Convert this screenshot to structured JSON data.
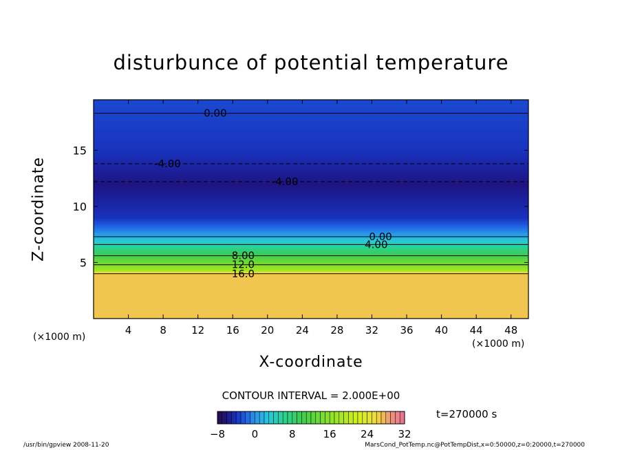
{
  "chart_data": {
    "type": "heatmap",
    "title": "disturbunce of potential temperature",
    "xlabel": "X-coordinate",
    "ylabel": "Z-coordinate",
    "x_unit": "(×1000 m)",
    "y_unit": "(×1000 m)",
    "xlim": [
      0,
      50
    ],
    "ylim": [
      0,
      19.5
    ],
    "x_ticks": [
      4,
      8,
      12,
      16,
      20,
      24,
      28,
      32,
      36,
      40,
      44,
      48
    ],
    "y_ticks": [
      5,
      10,
      15
    ],
    "contour_interval_text": "CONTOUR INTERVAL = 2.000E+00",
    "contour_labels": [
      {
        "text": "0.00",
        "x": 14,
        "z": 18.3
      },
      {
        "text": "-4.00",
        "x": 8.5,
        "z": 13.8
      },
      {
        "text": "-4.00",
        "x": 22,
        "z": 12.2
      },
      {
        "text": "0.00",
        "x": 33,
        "z": 7.3
      },
      {
        "text": "4.00",
        "x": 32.5,
        "z": 6.6
      },
      {
        "text": "8.00",
        "x": 17.2,
        "z": 5.6
      },
      {
        "text": "12.0",
        "x": 17.2,
        "z": 4.8
      },
      {
        "text": "16.0",
        "x": 17.2,
        "z": 4.0
      }
    ],
    "field_profile": [
      {
        "z": 0.0,
        "value": 27
      },
      {
        "z": 4.1,
        "value": 27
      },
      {
        "z": 4.3,
        "value": 18
      },
      {
        "z": 5.0,
        "value": 14
      },
      {
        "z": 5.7,
        "value": 10
      },
      {
        "z": 6.4,
        "value": 6
      },
      {
        "z": 7.0,
        "value": 3
      },
      {
        "z": 7.6,
        "value": 0
      },
      {
        "z": 9.0,
        "value": -4
      },
      {
        "z": 12.0,
        "value": -6
      },
      {
        "z": 15.0,
        "value": -4
      },
      {
        "z": 19.5,
        "value": -3
      }
    ],
    "colorbar": {
      "min": -8,
      "max": 32,
      "tick_labels": [
        "−8",
        "0",
        "8",
        "16",
        "24",
        "32"
      ],
      "tick_values": [
        -8,
        0,
        8,
        16,
        24,
        32
      ]
    },
    "time_label": "t=270000  s"
  },
  "footer": {
    "left": "/usr/bin/gpview   2008-11-20",
    "right": "MarsCond_PotTemp.nc@PotTempDist,x=0:50000,z=0:20000,t=270000"
  },
  "colors": {
    "low": "#1a2a8a",
    "mid": "#2070e0",
    "high": "#c8f020"
  }
}
